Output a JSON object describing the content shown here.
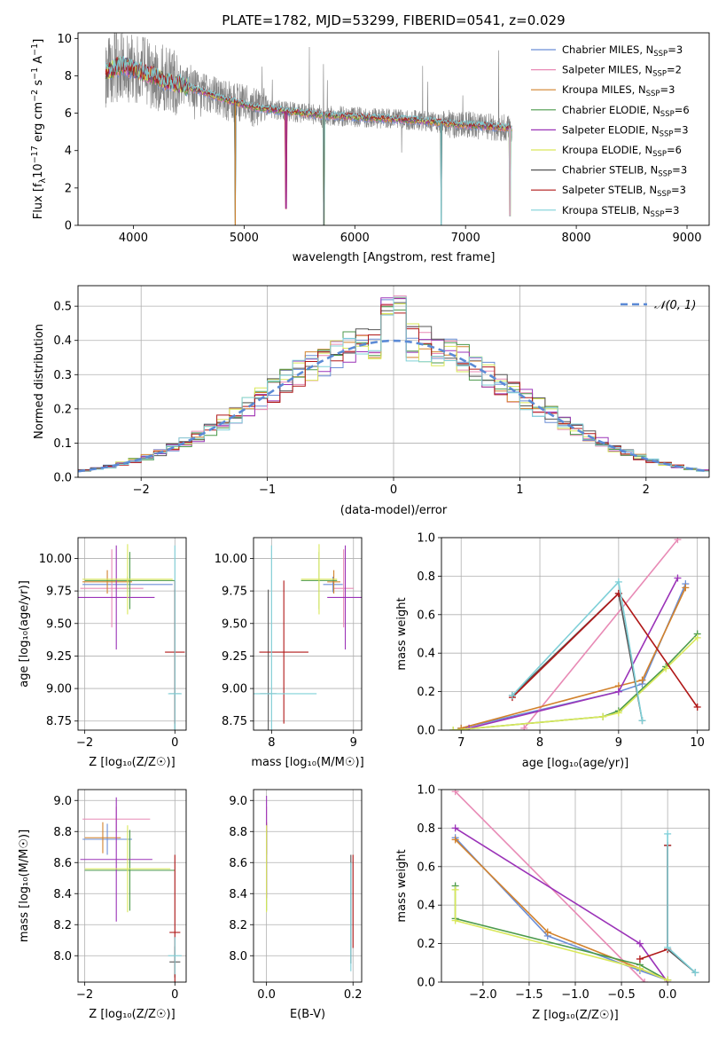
{
  "colors": {
    "Chabrier MILES": "#6b8ed6",
    "Salpeter MILES": "#e88ab5",
    "Kroupa MILES": "#d2822c",
    "Chabrier ELODIE": "#4b9a4b",
    "Salpeter ELODIE": "#9b33b8",
    "Kroupa ELODIE": "#d9e85a",
    "Chabrier STELIB": "#555555",
    "Salpeter STELIB": "#b01818",
    "Kroupa STELIB": "#7fd0d8"
  },
  "chart_data": [
    {
      "id": "spectrum",
      "type": "line",
      "title": "PLATE=1782, MJD=53299, FIBERID=0541, z=0.029",
      "xlabel": "wavelength [Angstrom, rest frame]",
      "ylabel_parts": [
        "Flux [f",
        "λ",
        "10",
        "−17",
        " erg cm",
        "−2",
        " s",
        "−1",
        " A",
        "−1",
        "]"
      ],
      "xlim": [
        3500,
        9200
      ],
      "ylim": [
        0,
        10.3
      ],
      "xticks": [
        4000,
        5000,
        6000,
        7000,
        8000,
        9000
      ],
      "yticks": [
        0,
        2,
        4,
        6,
        8,
        10
      ],
      "data_range": [
        3750,
        7420
      ],
      "continuum": [
        [
          3750,
          8.2
        ],
        [
          3900,
          8.6
        ],
        [
          4000,
          8.3
        ],
        [
          4150,
          8.1
        ],
        [
          4300,
          7.7
        ],
        [
          4500,
          7.4
        ],
        [
          4700,
          7.0
        ],
        [
          4900,
          6.6
        ],
        [
          5100,
          6.3
        ],
        [
          5400,
          6.1
        ],
        [
          5700,
          5.9
        ],
        [
          6000,
          5.8
        ],
        [
          6300,
          5.7
        ],
        [
          6600,
          5.6
        ],
        [
          6900,
          5.4
        ],
        [
          7200,
          5.3
        ],
        [
          7420,
          5.2
        ]
      ],
      "dips": [
        [
          4920,
          0
        ],
        [
          5380,
          0.9
        ],
        [
          5720,
          0
        ],
        [
          6780,
          0
        ],
        [
          7400,
          0.5
        ]
      ],
      "legend": [
        {
          "name": "Chabrier MILES",
          "nssp": "3"
        },
        {
          "name": "Salpeter MILES",
          "nssp": "2"
        },
        {
          "name": "Kroupa MILES",
          "nssp": "3"
        },
        {
          "name": "Chabrier ELODIE",
          "nssp": "6"
        },
        {
          "name": "Salpeter ELODIE",
          "nssp": "3"
        },
        {
          "name": "Kroupa ELODIE",
          "nssp": "6"
        },
        {
          "name": "Chabrier STELIB",
          "nssp": "3"
        },
        {
          "name": "Salpeter STELIB",
          "nssp": "3"
        },
        {
          "name": "Kroupa STELIB",
          "nssp": "3"
        }
      ],
      "legend_sub": "SSP",
      "legend_prefix": "N",
      "legend_eq": "="
    },
    {
      "id": "residuals",
      "type": "histogram",
      "xlabel": "(data-model)/error",
      "ylabel": "Normed distribution",
      "xlim": [
        -2.5,
        2.5
      ],
      "ylim": [
        0,
        0.56
      ],
      "xticks": [
        -2,
        -1,
        0,
        1,
        2
      ],
      "yticks": [
        0,
        0.1,
        0.2,
        0.3,
        0.4,
        0.5
      ],
      "bin_width": 0.1,
      "legend": "𝒩(0, 1)",
      "legend_position": "top-right"
    },
    {
      "id": "age-vs-Z",
      "type": "errorbar",
      "xlabel": "Z [log₁₀(Z/Z☉)]",
      "ylabel": "age  [log₁₀(age/yr)]",
      "xlim": [
        -2.15,
        0.25
      ],
      "ylim": [
        8.68,
        10.16
      ],
      "xticks": [
        -2,
        0
      ],
      "xtick_labels": [
        "−2",
        "0"
      ],
      "yticks": [
        8.75,
        9.0,
        9.25,
        9.5,
        9.75,
        10.0
      ],
      "ytick_labels": [
        "8.75",
        "9.00",
        "9.25",
        "9.50",
        "9.75",
        "10.00"
      ],
      "points": [
        {
          "model": "Chabrier MILES",
          "x": -1.05,
          "xerr": 1.0,
          "y": 9.8,
          "yerr": 0.06
        },
        {
          "model": "Salpeter MILES",
          "x": -1.4,
          "xerr": 0.7,
          "y": 9.77,
          "yerr": 0.3
        },
        {
          "model": "Kroupa MILES",
          "x": -1.5,
          "xerr": 0.55,
          "y": 9.82,
          "yerr": 0.09
        },
        {
          "model": "Chabrier ELODIE",
          "x": -1.0,
          "xerr": 1.0,
          "y": 9.83,
          "yerr": 0.22
        },
        {
          "model": "Salpeter ELODIE",
          "x": -1.3,
          "xerr": 0.85,
          "y": 9.7,
          "yerr": 0.4
        },
        {
          "model": "Kroupa ELODIE",
          "x": -1.05,
          "xerr": 1.0,
          "y": 9.84,
          "yerr": 0.27
        },
        {
          "model": "Chabrier STELIB",
          "x": 0.0,
          "xerr": 0.12,
          "y": 8.96,
          "yerr": 0.8
        },
        {
          "model": "Salpeter STELIB",
          "x": 0.0,
          "xerr": 0.22,
          "y": 9.28,
          "yerr": 0.55
        },
        {
          "model": "Kroupa STELIB",
          "x": 0.0,
          "xerr": 0.15,
          "y": 8.96,
          "yerr": 1.14
        }
      ]
    },
    {
      "id": "age-vs-mass",
      "type": "errorbar",
      "xlabel": "mass [log₁₀(M/M☉)]",
      "ylabel": "",
      "xlim": [
        7.78,
        9.1
      ],
      "ylim": [
        8.68,
        10.16
      ],
      "xticks": [
        8,
        9
      ],
      "xtick_labels": [
        "8",
        "9"
      ],
      "yticks": [
        8.75,
        9.0,
        9.25,
        9.5,
        9.75,
        10.0
      ],
      "ytick_labels": [
        "8.75",
        "9.00",
        "9.25",
        "9.50",
        "9.75",
        "10.00"
      ],
      "points": [
        {
          "model": "Chabrier MILES",
          "x": 8.75,
          "xerr": 0.12,
          "y": 9.8,
          "yerr": 0.06
        },
        {
          "model": "Salpeter MILES",
          "x": 8.88,
          "xerr": 0.12,
          "y": 9.77,
          "yerr": 0.3
        },
        {
          "model": "Kroupa MILES",
          "x": 8.76,
          "xerr": 0.08,
          "y": 9.82,
          "yerr": 0.09
        },
        {
          "model": "Chabrier ELODIE",
          "x": 8.58,
          "xerr": 0.22,
          "y": 9.83,
          "yerr": 0.22
        },
        {
          "model": "Salpeter ELODIE",
          "x": 8.9,
          "xerr": 0.22,
          "y": 9.7,
          "yerr": 0.4
        },
        {
          "model": "Kroupa ELODIE",
          "x": 8.58,
          "xerr": 0.22,
          "y": 9.84,
          "yerr": 0.27
        },
        {
          "model": "Chabrier STELIB",
          "x": 7.96,
          "xerr": 0.1,
          "y": 8.96,
          "yerr": 0.8
        },
        {
          "model": "Salpeter STELIB",
          "x": 8.15,
          "xerr": 0.3,
          "y": 9.28,
          "yerr": 0.55
        },
        {
          "model": "Kroupa STELIB",
          "x": 8.0,
          "xerr": 0.55,
          "y": 8.96,
          "yerr": 1.14
        }
      ]
    },
    {
      "id": "mass-vs-Z",
      "type": "errorbar",
      "xlabel": "Z [log₁₀(Z/Z☉)]",
      "ylabel": "mass [log₁₀(M/M☉)]",
      "xlim": [
        -2.15,
        0.25
      ],
      "ylim": [
        7.83,
        9.07
      ],
      "xticks": [
        -2,
        0
      ],
      "xtick_labels": [
        "−2",
        "0"
      ],
      "yticks": [
        8.0,
        8.2,
        8.4,
        8.6,
        8.8,
        9.0
      ],
      "ytick_labels": [
        "8.0",
        "8.2",
        "8.4",
        "8.6",
        "8.8",
        "9.0"
      ],
      "points": [
        {
          "model": "Chabrier MILES",
          "x": -1.5,
          "xerr": 0.55,
          "y": 8.75,
          "yerr": 0.1
        },
        {
          "model": "Salpeter MILES",
          "x": -1.3,
          "xerr": 0.75,
          "y": 8.88,
          "yerr": 0.08
        },
        {
          "model": "Kroupa MILES",
          "x": -1.6,
          "xerr": 0.4,
          "y": 8.76,
          "yerr": 0.1
        },
        {
          "model": "Chabrier ELODIE",
          "x": -1.0,
          "xerr": 1.0,
          "y": 8.55,
          "yerr": 0.26
        },
        {
          "model": "Salpeter ELODIE",
          "x": -1.3,
          "xerr": 0.8,
          "y": 8.62,
          "yerr": 0.4
        },
        {
          "model": "Kroupa ELODIE",
          "x": -1.05,
          "xerr": 0.95,
          "y": 8.56,
          "yerr": 0.28
        },
        {
          "model": "Chabrier STELIB",
          "x": 0.0,
          "xerr": 0.12,
          "y": 7.96,
          "yerr": 0.1
        },
        {
          "model": "Salpeter STELIB",
          "x": 0.0,
          "xerr": 0.12,
          "y": 8.15,
          "yerr": 0.5
        },
        {
          "model": "Kroupa STELIB",
          "x": 0.0,
          "xerr": 0.15,
          "y": 8.0,
          "yerr": 0.12
        }
      ]
    },
    {
      "id": "mass-vs-EBV",
      "type": "errorbar",
      "xlabel": "E(B-V)",
      "ylabel": "",
      "xlim": [
        -0.03,
        0.22
      ],
      "ylim": [
        7.83,
        9.07
      ],
      "xticks": [
        0.0,
        0.2
      ],
      "xtick_labels": [
        "0.0",
        "0.2"
      ],
      "yticks": [
        8.0,
        8.2,
        8.4,
        8.6,
        8.8,
        9.0
      ],
      "ytick_labels": [
        "8.0",
        "8.2",
        "8.4",
        "8.6",
        "8.8",
        "9.0"
      ],
      "points": [
        {
          "model": "Chabrier MILES",
          "x": 0.0,
          "xerr": 0,
          "y": 8.75,
          "yerr": 0.1
        },
        {
          "model": "Salpeter MILES",
          "x": 0.0,
          "xerr": 0,
          "y": 8.88,
          "yerr": 0.08
        },
        {
          "model": "Kroupa MILES",
          "x": 0.0,
          "xerr": 0,
          "y": 8.76,
          "yerr": 0.1
        },
        {
          "model": "Chabrier ELODIE",
          "x": 0.0,
          "xerr": 0,
          "y": 8.55,
          "yerr": 0.26
        },
        {
          "model": "Salpeter ELODIE",
          "x": 0.0,
          "xerr": 0,
          "y": 8.7,
          "yerr": 0.33
        },
        {
          "model": "Kroupa ELODIE",
          "x": 0.0,
          "xerr": 0,
          "y": 8.56,
          "yerr": 0.28
        },
        {
          "model": "Chabrier STELIB",
          "x": 0.195,
          "xerr": 0,
          "y": 8.3,
          "yerr": 0.35
        },
        {
          "model": "Salpeter STELIB",
          "x": 0.2,
          "xerr": 0,
          "y": 8.35,
          "yerr": 0.3
        },
        {
          "model": "Kroupa STELIB",
          "x": 0.195,
          "xerr": 0,
          "y": 8.25,
          "yerr": 0.35
        }
      ]
    },
    {
      "id": "weight-vs-age",
      "type": "line",
      "xlabel": "age  [log₁₀(age/yr)]",
      "ylabel": "mass weight",
      "xlim": [
        6.75,
        10.15
      ],
      "ylim": [
        0,
        1.0
      ],
      "xticks": [
        7,
        8,
        9,
        10
      ],
      "xtick_labels": [
        "7",
        "8",
        "9",
        "10"
      ],
      "yticks": [
        0,
        0.2,
        0.4,
        0.6,
        0.8,
        1.0
      ],
      "ytick_labels": [
        "0.0",
        "0.2",
        "0.4",
        "0.6",
        "0.8",
        "1.0"
      ],
      "series": [
        {
          "model": "Chabrier MILES",
          "points": [
            [
              7.0,
              0.01
            ],
            [
              9.0,
              0.2
            ],
            [
              9.3,
              0.24
            ],
            [
              9.85,
              0.76
            ]
          ]
        },
        {
          "model": "Salpeter MILES",
          "points": [
            [
              7.8,
              0.01
            ],
            [
              9.75,
              0.99
            ]
          ]
        },
        {
          "model": "Kroupa MILES",
          "points": [
            [
              7.0,
              0.01
            ],
            [
              9.0,
              0.23
            ],
            [
              9.3,
              0.26
            ],
            [
              9.85,
              0.74
            ]
          ]
        },
        {
          "model": "Chabrier ELODIE",
          "points": [
            [
              6.9,
              0.0
            ],
            [
              8.8,
              0.07
            ],
            [
              9.0,
              0.1
            ],
            [
              9.6,
              0.33
            ],
            [
              10.0,
              0.5
            ]
          ]
        },
        {
          "model": "Salpeter ELODIE",
          "points": [
            [
              7.1,
              0.01
            ],
            [
              9.0,
              0.2
            ],
            [
              9.75,
              0.79
            ]
          ]
        },
        {
          "model": "Kroupa ELODIE",
          "points": [
            [
              6.9,
              0.0
            ],
            [
              8.8,
              0.07
            ],
            [
              9.0,
              0.09
            ],
            [
              9.6,
              0.32
            ],
            [
              10.0,
              0.48
            ]
          ]
        },
        {
          "model": "Chabrier STELIB",
          "points": [
            [
              7.65,
              0.18
            ],
            [
              9.0,
              0.71
            ],
            [
              9.3,
              0.05
            ]
          ]
        },
        {
          "model": "Salpeter STELIB",
          "points": [
            [
              7.65,
              0.17
            ],
            [
              9.0,
              0.71
            ],
            [
              10.0,
              0.12
            ]
          ]
        },
        {
          "model": "Kroupa STELIB",
          "points": [
            [
              7.65,
              0.18
            ],
            [
              9.0,
              0.77
            ],
            [
              9.3,
              0.05
            ]
          ]
        }
      ]
    },
    {
      "id": "weight-vs-Z",
      "type": "line",
      "xlabel": "Z [log₁₀(Z/Z☉)]",
      "ylabel": "mass weight",
      "xlim": [
        -2.45,
        0.45
      ],
      "ylim": [
        0,
        1.0
      ],
      "xticks": [
        -2.0,
        -1.5,
        -1.0,
        -0.5,
        0.0
      ],
      "xtick_labels": [
        "−2.0",
        "−1.5",
        "−1.0",
        "−0.5",
        "0.0"
      ],
      "yticks": [
        0,
        0.2,
        0.4,
        0.6,
        0.8,
        1.0
      ],
      "ytick_labels": [
        "0.0",
        "0.2",
        "0.4",
        "0.6",
        "0.8",
        "1.0"
      ],
      "series": [
        {
          "model": "Chabrier MILES",
          "points": [
            [
              -2.3,
              0.75
            ],
            [
              -1.3,
              0.24
            ],
            [
              -0.3,
              0.06
            ],
            [
              0.0,
              0.01
            ]
          ]
        },
        {
          "model": "Salpeter MILES",
          "points": [
            [
              -2.3,
              0.99
            ],
            [
              -0.25,
              0.0
            ]
          ]
        },
        {
          "model": "Kroupa MILES",
          "points": [
            [
              -2.3,
              0.74
            ],
            [
              -1.3,
              0.26
            ],
            [
              -0.3,
              0.07
            ],
            [
              0.0,
              0.01
            ]
          ]
        },
        {
          "model": "Chabrier ELODIE",
          "points": [
            [
              -2.3,
              0.5
            ],
            [
              -2.3,
              0.33
            ],
            [
              -0.3,
              0.09
            ],
            [
              0.0,
              0.01
            ]
          ]
        },
        {
          "model": "Salpeter ELODIE",
          "points": [
            [
              -2.3,
              0.8
            ],
            [
              -0.3,
              0.2
            ],
            [
              0.0,
              0.0
            ]
          ]
        },
        {
          "model": "Kroupa ELODIE",
          "points": [
            [
              -2.3,
              0.48
            ],
            [
              -2.3,
              0.32
            ],
            [
              -0.3,
              0.07
            ],
            [
              0.0,
              0.01
            ]
          ]
        },
        {
          "model": "Chabrier STELIB",
          "points": [
            [
              0.0,
              0.71
            ],
            [
              0.0,
              0.17
            ],
            [
              0.3,
              0.05
            ]
          ]
        },
        {
          "model": "Salpeter STELIB",
          "points": [
            [
              -0.3,
              0.12
            ],
            [
              0.0,
              0.17
            ],
            [
              0.0,
              0.71
            ]
          ]
        },
        {
          "model": "Kroupa STELIB",
          "points": [
            [
              0.0,
              0.77
            ],
            [
              0.0,
              0.18
            ],
            [
              0.3,
              0.05
            ]
          ]
        }
      ]
    }
  ]
}
